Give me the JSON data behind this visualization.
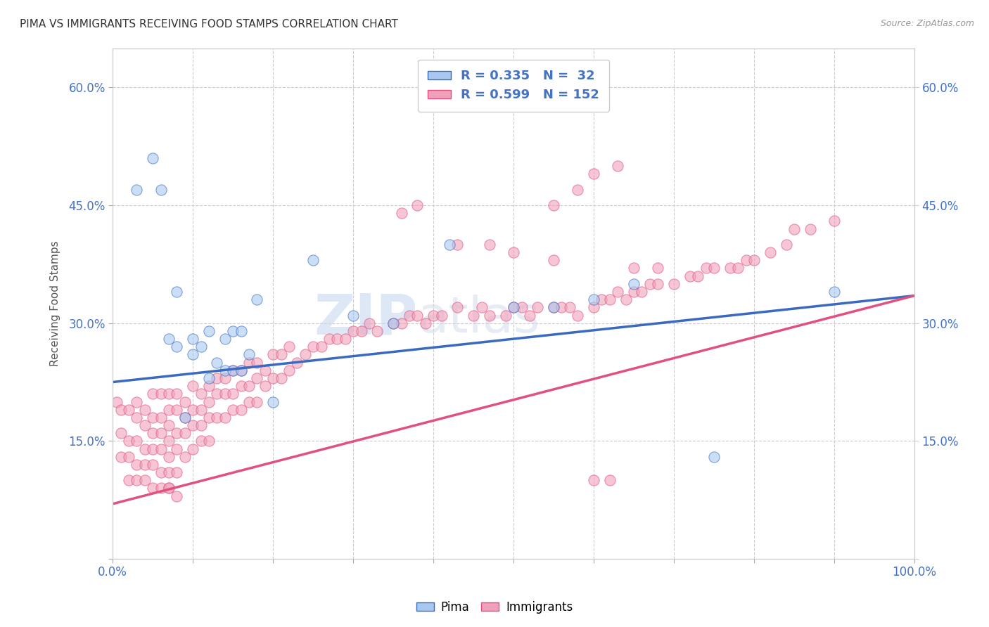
{
  "title": "PIMA VS IMMIGRANTS RECEIVING FOOD STAMPS CORRELATION CHART",
  "source_text": "Source: ZipAtlas.com",
  "ylabel": "Receiving Food Stamps",
  "xlim": [
    0.0,
    1.0
  ],
  "ylim": [
    0.0,
    0.65
  ],
  "xticks": [
    0.0,
    0.1,
    0.2,
    0.3,
    0.4,
    0.5,
    0.6,
    0.7,
    0.8,
    0.9,
    1.0
  ],
  "xtick_labels": [
    "0.0%",
    "",
    "",
    "",
    "",
    "",
    "",
    "",
    "",
    "",
    "100.0%"
  ],
  "yticks": [
    0.0,
    0.15,
    0.3,
    0.45,
    0.6
  ],
  "ytick_labels": [
    "",
    "15.0%",
    "30.0%",
    "45.0%",
    "60.0%"
  ],
  "pima_color": "#a8c8f0",
  "immigrants_color": "#f0a0b8",
  "pima_line_color": "#3a6abf",
  "immigrants_line_color": "#e05080",
  "grid_color": "#cccccc",
  "background_color": "#ffffff",
  "pima_trend_x": [
    0.0,
    1.0
  ],
  "pima_trend_y": [
    0.225,
    0.335
  ],
  "immigrants_trend_x": [
    0.0,
    1.0
  ],
  "immigrants_trend_y": [
    0.07,
    0.335
  ],
  "pima_scatter_x": [
    0.03,
    0.05,
    0.06,
    0.07,
    0.08,
    0.08,
    0.09,
    0.1,
    0.1,
    0.11,
    0.12,
    0.12,
    0.13,
    0.14,
    0.14,
    0.15,
    0.15,
    0.16,
    0.16,
    0.17,
    0.18,
    0.2,
    0.25,
    0.3,
    0.35,
    0.42,
    0.5,
    0.55,
    0.6,
    0.65,
    0.75,
    0.9
  ],
  "pima_scatter_y": [
    0.47,
    0.51,
    0.47,
    0.28,
    0.27,
    0.34,
    0.18,
    0.26,
    0.28,
    0.27,
    0.23,
    0.29,
    0.25,
    0.24,
    0.28,
    0.24,
    0.29,
    0.24,
    0.29,
    0.26,
    0.33,
    0.2,
    0.38,
    0.31,
    0.3,
    0.4,
    0.32,
    0.32,
    0.33,
    0.35,
    0.13,
    0.34
  ],
  "immigrants_scatter_x": [
    0.005,
    0.01,
    0.01,
    0.01,
    0.02,
    0.02,
    0.02,
    0.02,
    0.03,
    0.03,
    0.03,
    0.03,
    0.03,
    0.04,
    0.04,
    0.04,
    0.04,
    0.04,
    0.05,
    0.05,
    0.05,
    0.05,
    0.05,
    0.05,
    0.06,
    0.06,
    0.06,
    0.06,
    0.06,
    0.06,
    0.07,
    0.07,
    0.07,
    0.07,
    0.07,
    0.07,
    0.07,
    0.08,
    0.08,
    0.08,
    0.08,
    0.08,
    0.09,
    0.09,
    0.09,
    0.09,
    0.1,
    0.1,
    0.1,
    0.1,
    0.11,
    0.11,
    0.11,
    0.11,
    0.12,
    0.12,
    0.12,
    0.12,
    0.13,
    0.13,
    0.13,
    0.14,
    0.14,
    0.14,
    0.15,
    0.15,
    0.15,
    0.16,
    0.16,
    0.16,
    0.17,
    0.17,
    0.17,
    0.18,
    0.18,
    0.18,
    0.19,
    0.19,
    0.2,
    0.2,
    0.21,
    0.21,
    0.22,
    0.22,
    0.23,
    0.24,
    0.25,
    0.26,
    0.27,
    0.28,
    0.29,
    0.3,
    0.31,
    0.32,
    0.33,
    0.35,
    0.36,
    0.37,
    0.38,
    0.39,
    0.4,
    0.41,
    0.43,
    0.45,
    0.46,
    0.47,
    0.49,
    0.5,
    0.51,
    0.52,
    0.53,
    0.55,
    0.56,
    0.57,
    0.58,
    0.6,
    0.61,
    0.62,
    0.63,
    0.64,
    0.65,
    0.66,
    0.67,
    0.68,
    0.7,
    0.72,
    0.73,
    0.74,
    0.75,
    0.77,
    0.78,
    0.79,
    0.8,
    0.82,
    0.84,
    0.85,
    0.87,
    0.9,
    0.43,
    0.47,
    0.5,
    0.55,
    0.6,
    0.62,
    0.65,
    0.68,
    0.55,
    0.58,
    0.6,
    0.63,
    0.36,
    0.38,
    0.07,
    0.08
  ],
  "immigrants_scatter_y": [
    0.2,
    0.19,
    0.16,
    0.13,
    0.19,
    0.15,
    0.13,
    0.1,
    0.2,
    0.18,
    0.15,
    0.12,
    0.1,
    0.19,
    0.17,
    0.14,
    0.12,
    0.1,
    0.21,
    0.18,
    0.16,
    0.14,
    0.12,
    0.09,
    0.21,
    0.18,
    0.16,
    0.14,
    0.11,
    0.09,
    0.21,
    0.19,
    0.17,
    0.15,
    0.13,
    0.11,
    0.09,
    0.21,
    0.19,
    0.16,
    0.14,
    0.11,
    0.2,
    0.18,
    0.16,
    0.13,
    0.22,
    0.19,
    0.17,
    0.14,
    0.21,
    0.19,
    0.17,
    0.15,
    0.22,
    0.2,
    0.18,
    0.15,
    0.23,
    0.21,
    0.18,
    0.23,
    0.21,
    0.18,
    0.24,
    0.21,
    0.19,
    0.24,
    0.22,
    0.19,
    0.25,
    0.22,
    0.2,
    0.25,
    0.23,
    0.2,
    0.24,
    0.22,
    0.26,
    0.23,
    0.26,
    0.23,
    0.27,
    0.24,
    0.25,
    0.26,
    0.27,
    0.27,
    0.28,
    0.28,
    0.28,
    0.29,
    0.29,
    0.3,
    0.29,
    0.3,
    0.3,
    0.31,
    0.31,
    0.3,
    0.31,
    0.31,
    0.32,
    0.31,
    0.32,
    0.31,
    0.31,
    0.32,
    0.32,
    0.31,
    0.32,
    0.32,
    0.32,
    0.32,
    0.31,
    0.32,
    0.33,
    0.33,
    0.34,
    0.33,
    0.34,
    0.34,
    0.35,
    0.35,
    0.35,
    0.36,
    0.36,
    0.37,
    0.37,
    0.37,
    0.37,
    0.38,
    0.38,
    0.39,
    0.4,
    0.42,
    0.42,
    0.43,
    0.4,
    0.4,
    0.39,
    0.38,
    0.1,
    0.1,
    0.37,
    0.37,
    0.45,
    0.47,
    0.49,
    0.5,
    0.44,
    0.45,
    0.09,
    0.08
  ]
}
